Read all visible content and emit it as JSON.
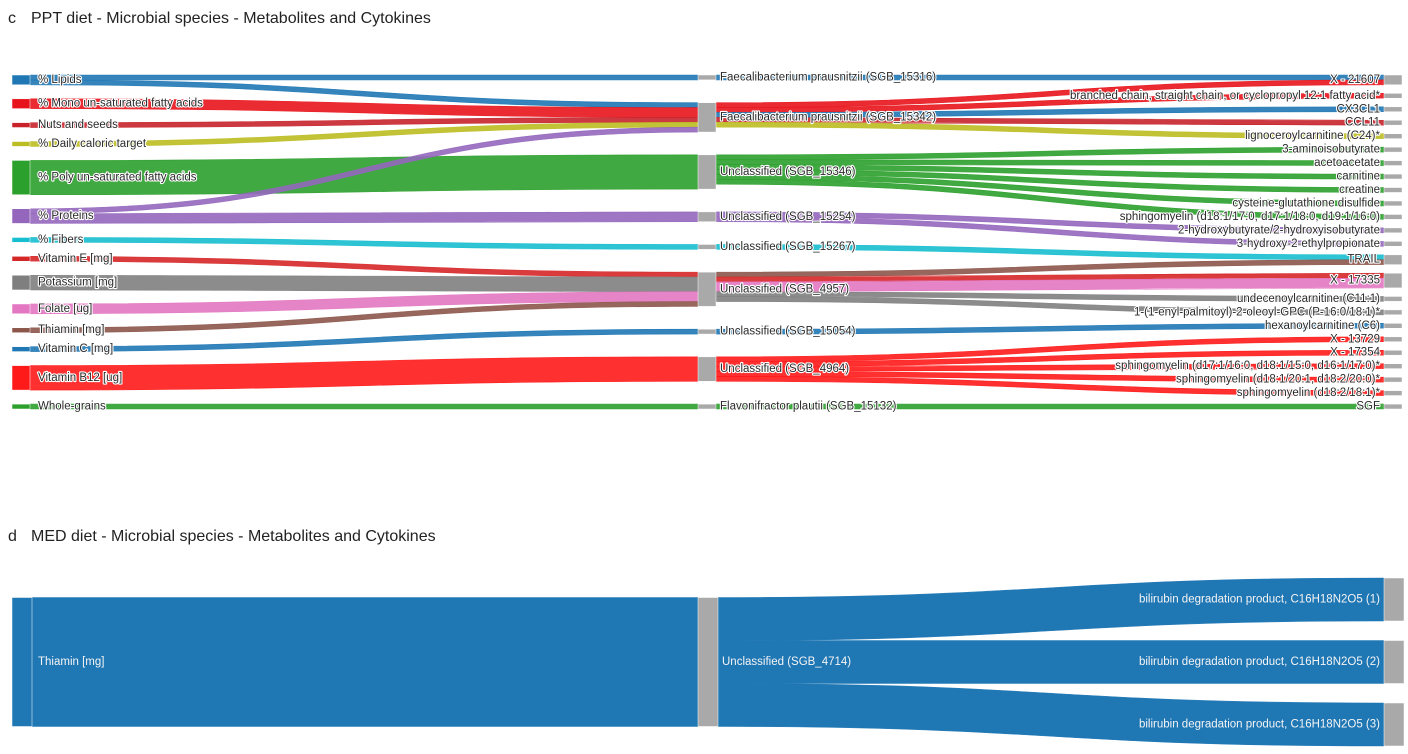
{
  "chart_data": [
    {
      "type": "sankey",
      "panel_letter": "c",
      "title": "PPT diet - Microbial species - Metabolites and Cytokines",
      "columns": [
        "diet",
        "species",
        "metabolite"
      ],
      "nodes": {
        "diet": [
          "% Lipids",
          "% Mono un-saturated fatty acids",
          "Nuts and seeds",
          "% Daily caloric target",
          "% Poly un-saturated fatty acids",
          "% Proteins",
          "% Fibers",
          "Vitamin E [mg]",
          "Potassium [mg]",
          "Folate [ug]",
          "Thiamin [mg]",
          "Vitamin C [mg]",
          "Vitamin B12 [ug]",
          "Whole-grains"
        ],
        "species": [
          "Faecalibacterium prausnitzii (SGB_15316)",
          "Faecalibacterium prausnitzii (SGB_15342)",
          "Unclassified (SGB_15346)",
          "Unclassified (SGB_15254)",
          "Unclassified (SGB_15267)",
          "Unclassified (SGB_4957)",
          "Unclassified (SGB_15054)",
          "Unclassified (SGB_4964)",
          "Flavonifractor plautii (SGB_15132)"
        ],
        "metabolite": [
          "X - 21607",
          "branched chain, straight chain, or cyclopropyl 12:1 fatty acid*",
          "CX3CL1",
          "CCL11",
          "lignoceroylcarnitine (C24)*",
          "3-aminoisobutyrate",
          "acetoacetate",
          "carnitine",
          "creatine",
          "cysteine-glutathione disulfide",
          "sphingomyelin (d18:1/17:0, d17:1/18:0, d19:1/16:0)",
          "2-hydroxybutyrate/2-hydroxyisobutyrate",
          "3-hydroxy-2-ethylpropionate",
          "TRAIL",
          "X - 17335",
          "undecenoylcarnitine (C11:1)",
          "1-(1-enyl-palmitoyl)-2-oleoyl-GPC (P-16:0/18:1)*",
          "hexanoylcarnitine (C6)",
          "X - 13729",
          "X - 17354",
          "sphingomyelin (d17:1/16:0, d18:1/15:0, d16:1/17:0)*",
          "sphingomyelin (d18:1/20:1, d18:2/20:0)*",
          "sphingomyelin (d18:2/18:1)*",
          "SGF"
        ]
      },
      "links_left": [
        {
          "source": "% Lipids",
          "target": "Faecalibacterium prausnitzii (SGB_15316)",
          "value": 1,
          "color": "#1f77b4"
        },
        {
          "source": "% Lipids",
          "target": "Faecalibacterium prausnitzii (SGB_15342)",
          "value": 1,
          "color": "#1f77b4"
        },
        {
          "source": "% Mono un-saturated fatty acids",
          "target": "Faecalibacterium prausnitzii (SGB_15342)",
          "value": 2,
          "color": "#e8141c"
        },
        {
          "source": "Nuts and seeds",
          "target": "Faecalibacterium prausnitzii (SGB_15342)",
          "value": 1,
          "color": "#c8232b"
        },
        {
          "source": "% Daily caloric target",
          "target": "Faecalibacterium prausnitzii (SGB_15342)",
          "value": 1,
          "color": "#bcbd22"
        },
        {
          "source": "% Poly un-saturated fatty acids",
          "target": "Unclassified (SGB_15346)",
          "value": 7,
          "color": "#2ca02c"
        },
        {
          "source": "% Proteins",
          "target": "Faecalibacterium prausnitzii (SGB_15342)",
          "value": 1,
          "color": "#9467bd"
        },
        {
          "source": "% Proteins",
          "target": "Unclassified (SGB_15254)",
          "value": 2,
          "color": "#9467bd"
        },
        {
          "source": "% Fibers",
          "target": "Unclassified (SGB_15267)",
          "value": 1,
          "color": "#17becf"
        },
        {
          "source": "Vitamin E [mg]",
          "target": "Unclassified (SGB_4957)",
          "value": 1,
          "color": "#d62728"
        },
        {
          "source": "Potassium [mg]",
          "target": "Unclassified (SGB_4957)",
          "value": 3,
          "color": "#7f7f7f"
        },
        {
          "source": "Folate [ug]",
          "target": "Unclassified (SGB_4957)",
          "value": 2,
          "color": "#e377c2"
        },
        {
          "source": "Thiamin [mg]",
          "target": "Unclassified (SGB_4957)",
          "value": 1,
          "color": "#8c564b"
        },
        {
          "source": "Vitamin C [mg]",
          "target": "Unclassified (SGB_15054)",
          "value": 1,
          "color": "#1f77b4"
        },
        {
          "source": "Vitamin B12 [ug]",
          "target": "Unclassified (SGB_4964)",
          "value": 5,
          "color": "#ff1a1a"
        },
        {
          "source": "Whole-grains",
          "target": "Flavonifractor plautii (SGB_15132)",
          "value": 1,
          "color": "#2ca02c"
        }
      ],
      "links_right": [
        {
          "source": "Faecalibacterium prausnitzii (SGB_15316)",
          "target": "X - 21607",
          "value": 1,
          "color": "#1f77b4"
        },
        {
          "source": "Faecalibacterium prausnitzii (SGB_15342)",
          "target": "X - 21607",
          "value": 1,
          "color": "#e8141c"
        },
        {
          "source": "Faecalibacterium prausnitzii (SGB_15342)",
          "target": "branched chain, straight chain, or cyclopropyl 12:1 fatty acid*",
          "value": 1,
          "color": "#e8141c"
        },
        {
          "source": "Faecalibacterium prausnitzii (SGB_15342)",
          "target": "CX3CL1",
          "value": 1,
          "color": "#1f77b4"
        },
        {
          "source": "Faecalibacterium prausnitzii (SGB_15342)",
          "target": "CCL11",
          "value": 1,
          "color": "#c8232b"
        },
        {
          "source": "Faecalibacterium prausnitzii (SGB_15342)",
          "target": "lignoceroylcarnitine (C24)*",
          "value": 1,
          "color": "#bcbd22"
        },
        {
          "source": "Unclassified (SGB_15346)",
          "target": "3-aminoisobutyrate",
          "value": 1,
          "color": "#2ca02c"
        },
        {
          "source": "Unclassified (SGB_15346)",
          "target": "acetoacetate",
          "value": 1,
          "color": "#2ca02c"
        },
        {
          "source": "Unclassified (SGB_15346)",
          "target": "carnitine",
          "value": 1,
          "color": "#2ca02c"
        },
        {
          "source": "Unclassified (SGB_15346)",
          "target": "creatine",
          "value": 1,
          "color": "#2ca02c"
        },
        {
          "source": "Unclassified (SGB_15346)",
          "target": "cysteine-glutathione disulfide",
          "value": 1,
          "color": "#2ca02c"
        },
        {
          "source": "Unclassified (SGB_15346)",
          "target": "sphingomyelin (d18:1/17:0, d17:1/18:0, d19:1/16:0)",
          "value": 1,
          "color": "#2ca02c"
        },
        {
          "source": "Unclassified (SGB_15254)",
          "target": "2-hydroxybutyrate/2-hydroxyisobutyrate",
          "value": 1,
          "color": "#9467bd"
        },
        {
          "source": "Unclassified (SGB_15254)",
          "target": "3-hydroxy-2-ethylpropionate",
          "value": 1,
          "color": "#9467bd"
        },
        {
          "source": "Unclassified (SGB_15267)",
          "target": "TRAIL",
          "value": 1,
          "color": "#17becf"
        },
        {
          "source": "Unclassified (SGB_4957)",
          "target": "TRAIL",
          "value": 1,
          "color": "#8c564b"
        },
        {
          "source": "Unclassified (SGB_4957)",
          "target": "X - 17335",
          "value": 1,
          "color": "#d62728"
        },
        {
          "source": "Unclassified (SGB_4957)",
          "target": "X - 17335",
          "value": 2,
          "color": "#e377c2"
        },
        {
          "source": "Unclassified (SGB_4957)",
          "target": "undecenoylcarnitine (C11:1)",
          "value": 1,
          "color": "#7f7f7f"
        },
        {
          "source": "Unclassified (SGB_4957)",
          "target": "1-(1-enyl-palmitoyl)-2-oleoyl-GPC (P-16:0/18:1)*",
          "value": 1,
          "color": "#7f7f7f"
        },
        {
          "source": "Unclassified (SGB_15054)",
          "target": "hexanoylcarnitine (C6)",
          "value": 1,
          "color": "#1f77b4"
        },
        {
          "source": "Unclassified (SGB_4964)",
          "target": "X - 13729",
          "value": 1,
          "color": "#ff1a1a"
        },
        {
          "source": "Unclassified (SGB_4964)",
          "target": "X - 17354",
          "value": 1,
          "color": "#ff1a1a"
        },
        {
          "source": "Unclassified (SGB_4964)",
          "target": "sphingomyelin (d17:1/16:0, d18:1/15:0, d16:1/17:0)*",
          "value": 1,
          "color": "#ff1a1a"
        },
        {
          "source": "Unclassified (SGB_4964)",
          "target": "sphingomyelin (d18:1/20:1, d18:2/20:0)*",
          "value": 1,
          "color": "#ff1a1a"
        },
        {
          "source": "Unclassified (SGB_4964)",
          "target": "sphingomyelin (d18:2/18:1)*",
          "value": 1,
          "color": "#ff1a1a"
        },
        {
          "source": "Flavonifractor plautii (SGB_15132)",
          "target": "SGF",
          "value": 1,
          "color": "#2ca02c"
        }
      ]
    },
    {
      "type": "sankey",
      "panel_letter": "d",
      "title": "MED diet - Microbial species - Metabolites and Cytokines",
      "columns": [
        "diet",
        "species",
        "metabolite"
      ],
      "nodes": {
        "diet": [
          "Thiamin [mg]"
        ],
        "species": [
          "Unclassified (SGB_4714)"
        ],
        "metabolite": [
          "bilirubin degradation product, C16H18N2O5 (1)",
          "bilirubin degradation product, C16H18N2O5 (2)",
          "bilirubin degradation product, C16H18N2O5 (3)"
        ]
      },
      "links_left": [
        {
          "source": "Thiamin [mg]",
          "target": "Unclassified (SGB_4714)",
          "value": 3,
          "color": "#1f77b4"
        }
      ],
      "links_right": [
        {
          "source": "Unclassified (SGB_4714)",
          "target": "bilirubin degradation product, C16H18N2O5 (1)",
          "value": 1,
          "color": "#1f77b4"
        },
        {
          "source": "Unclassified (SGB_4714)",
          "target": "bilirubin degradation product, C16H18N2O5 (2)",
          "value": 1,
          "color": "#1f77b4"
        },
        {
          "source": "Unclassified (SGB_4714)",
          "target": "bilirubin degradation product, C16H18N2O5 (3)",
          "value": 1,
          "color": "#1f77b4"
        }
      ],
      "node_color": "#1f77b4"
    }
  ],
  "colors": {
    "node_gray": "#a9a9a9"
  }
}
